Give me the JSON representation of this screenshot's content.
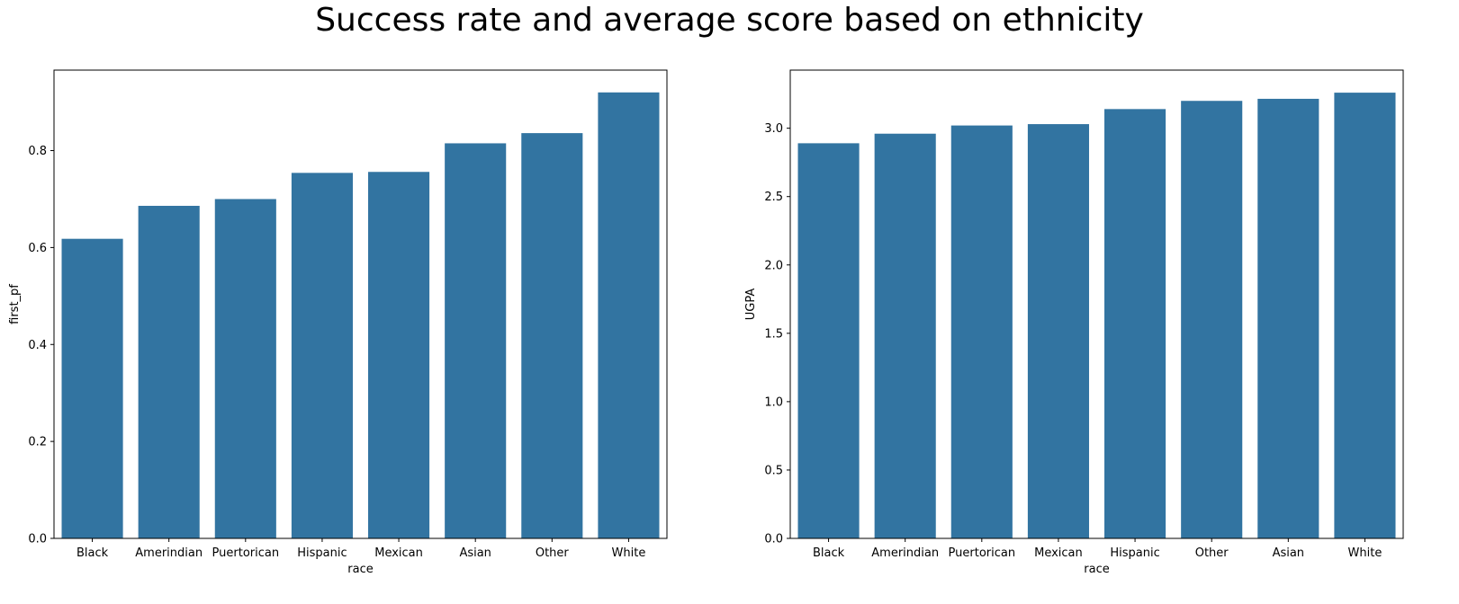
{
  "suptitle": "Success rate and average score based on ethnicity",
  "chart_data": [
    {
      "type": "bar",
      "title": "",
      "xlabel": "race",
      "ylabel": "first_pf",
      "categories": [
        "Black",
        "Amerindian",
        "Puertorican",
        "Hispanic",
        "Mexican",
        "Asian",
        "Other",
        "White"
      ],
      "values": [
        0.618,
        0.686,
        0.7,
        0.754,
        0.756,
        0.815,
        0.836,
        0.92
      ],
      "ylim": [
        0,
        0.966
      ],
      "yticks": [
        0.0,
        0.2,
        0.4,
        0.6,
        0.8
      ],
      "ytick_labels": [
        "0.0",
        "0.2",
        "0.4",
        "0.6",
        "0.8"
      ],
      "grid": false,
      "color": "#3274a1"
    },
    {
      "type": "bar",
      "title": "",
      "xlabel": "race",
      "ylabel": "UGPA",
      "categories": [
        "Black",
        "Amerindian",
        "Puertorican",
        "Mexican",
        "Hispanic",
        "Other",
        "Asian",
        "White"
      ],
      "values": [
        2.89,
        2.96,
        3.02,
        3.03,
        3.14,
        3.2,
        3.215,
        3.26
      ],
      "ylim": [
        0,
        3.425
      ],
      "yticks": [
        0.0,
        0.5,
        1.0,
        1.5,
        2.0,
        2.5,
        3.0
      ],
      "ytick_labels": [
        "0.0",
        "0.5",
        "1.0",
        "1.5",
        "2.0",
        "2.5",
        "3.0"
      ],
      "grid": false,
      "color": "#3274a1"
    }
  ]
}
